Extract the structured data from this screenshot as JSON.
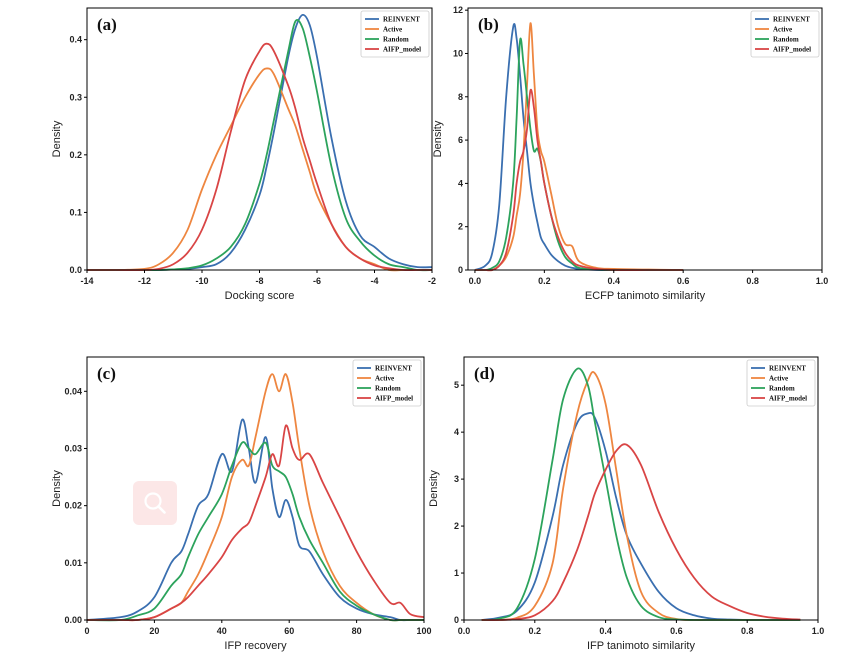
{
  "colors": {
    "REINVENT": "#3a6fb0",
    "Active": "#ee8640",
    "Random": "#2ca35c",
    "AIFP_model": "#d94545"
  },
  "legend_labels": [
    "REINVENT",
    "Active",
    "Random",
    "AIFP_model"
  ],
  "overlay_icon": "search-icon",
  "chart_data": [
    {
      "type": "line",
      "panel_label": "(a)",
      "xlabel": "Docking score",
      "ylabel": "Density",
      "xlim": [
        -14,
        -2
      ],
      "ylim": [
        0,
        0.455
      ],
      "xticks": [
        -14,
        -12,
        -10,
        -8,
        -6,
        -4,
        -2
      ],
      "yticks": [
        0.0,
        0.1,
        0.2,
        0.3,
        0.4
      ],
      "x": [
        -14,
        -13,
        -12,
        -11.5,
        -11,
        -10.5,
        -10,
        -9.5,
        -9,
        -8.5,
        -8,
        -7.75,
        -7.5,
        -7,
        -6.75,
        -6.5,
        -6.25,
        -6,
        -5.5,
        -5,
        -4.5,
        -4,
        -3.5,
        -3,
        -2.5,
        -2
      ],
      "series": [
        {
          "name": "REINVENT",
          "values": [
            0,
            0,
            0,
            0,
            0.001,
            0.002,
            0.005,
            0.01,
            0.03,
            0.07,
            0.13,
            0.18,
            0.24,
            0.37,
            0.42,
            0.443,
            0.425,
            0.37,
            0.23,
            0.12,
            0.06,
            0.04,
            0.02,
            0.01,
            0.005,
            0.005
          ]
        },
        {
          "name": "Active",
          "values": [
            0,
            0,
            0.002,
            0.01,
            0.03,
            0.07,
            0.14,
            0.2,
            0.25,
            0.3,
            0.34,
            0.35,
            0.34,
            0.28,
            0.25,
            0.21,
            0.17,
            0.13,
            0.08,
            0.04,
            0.02,
            0.01,
            0,
            0,
            0,
            0
          ]
        },
        {
          "name": "Random",
          "values": [
            0,
            0,
            0,
            0,
            0.001,
            0.003,
            0.008,
            0.02,
            0.04,
            0.08,
            0.15,
            0.2,
            0.26,
            0.38,
            0.432,
            0.42,
            0.37,
            0.31,
            0.18,
            0.09,
            0.05,
            0.025,
            0.01,
            0.005,
            0,
            0
          ]
        },
        {
          "name": "AIFP_model",
          "values": [
            0,
            0,
            0,
            0.002,
            0.01,
            0.03,
            0.07,
            0.14,
            0.24,
            0.33,
            0.38,
            0.393,
            0.38,
            0.32,
            0.28,
            0.23,
            0.19,
            0.15,
            0.08,
            0.04,
            0.02,
            0.008,
            0.003,
            0,
            0,
            0
          ]
        }
      ]
    },
    {
      "type": "line",
      "panel_label": "(b)",
      "xlabel": "ECFP tanimoto similarity",
      "ylabel": "Density",
      "xlim": [
        -0.02,
        1.0
      ],
      "ylim": [
        0,
        12.1
      ],
      "xticks": [
        0.0,
        0.2,
        0.4,
        0.6,
        0.8,
        1.0
      ],
      "yticks": [
        0,
        2,
        4,
        6,
        8,
        10,
        12
      ],
      "x": [
        0,
        0.03,
        0.05,
        0.07,
        0.09,
        0.11,
        0.12,
        0.13,
        0.14,
        0.15,
        0.16,
        0.17,
        0.18,
        0.19,
        0.2,
        0.22,
        0.24,
        0.26,
        0.28,
        0.3,
        0.35,
        0.4,
        0.5,
        0.6
      ],
      "series": [
        {
          "name": "REINVENT",
          "values": [
            0,
            0.2,
            0.8,
            3,
            8,
            11.2,
            10.7,
            9,
            7,
            5.5,
            4,
            3,
            2.2,
            1.5,
            1.2,
            0.7,
            0.4,
            0.2,
            0.1,
            0.05,
            0,
            0,
            0,
            0
          ]
        },
        {
          "name": "Active",
          "values": [
            0,
            0,
            0,
            0.2,
            0.6,
            1.5,
            2.5,
            3.5,
            5.5,
            8.5,
            11.4,
            9,
            6.5,
            5.5,
            5,
            3.5,
            2,
            1.2,
            1.1,
            0.4,
            0.1,
            0.05,
            0.02,
            0
          ]
        },
        {
          "name": "Random",
          "values": [
            0,
            0,
            0.1,
            0.4,
            1.5,
            4,
            7,
            10.6,
            9.5,
            8,
            6.5,
            5.5,
            5.6,
            5,
            4,
            2.5,
            1.3,
            0.6,
            0.3,
            0.1,
            0.02,
            0,
            0,
            0
          ]
        },
        {
          "name": "AIFP_model",
          "values": [
            0,
            0,
            0,
            0.2,
            0.8,
            2.5,
            4,
            5,
            5.5,
            6.5,
            8.3,
            7.5,
            6,
            5,
            4,
            2.5,
            1.5,
            0.8,
            0.4,
            0.2,
            0.05,
            0,
            0,
            0
          ]
        }
      ]
    },
    {
      "type": "line",
      "panel_label": "(c)",
      "xlabel": "IFP recovery",
      "ylabel": "Density",
      "xlim": [
        0,
        100
      ],
      "ylim": [
        0,
        0.046
      ],
      "xticks": [
        0,
        20,
        40,
        60,
        80,
        100
      ],
      "yticks": [
        0.0,
        0.01,
        0.02,
        0.03,
        0.04
      ],
      "x": [
        0,
        10,
        15,
        20,
        25,
        28,
        30,
        33,
        36,
        40,
        43,
        46,
        48,
        50,
        53,
        55,
        57,
        59,
        61,
        63,
        66,
        70,
        75,
        80,
        85,
        90,
        93,
        96,
        100
      ],
      "series": [
        {
          "name": "REINVENT",
          "values": [
            0,
            0.0005,
            0.0015,
            0.004,
            0.01,
            0.012,
            0.015,
            0.02,
            0.022,
            0.029,
            0.026,
            0.035,
            0.03,
            0.024,
            0.032,
            0.023,
            0.018,
            0.021,
            0.018,
            0.013,
            0.012,
            0.008,
            0.004,
            0.002,
            0.001,
            0.0005,
            0,
            0,
            0
          ]
        },
        {
          "name": "Active",
          "values": [
            0,
            0,
            0,
            0.0005,
            0.002,
            0.003,
            0.005,
            0.008,
            0.012,
            0.018,
            0.025,
            0.028,
            0.027,
            0.032,
            0.04,
            0.043,
            0.04,
            0.043,
            0.038,
            0.03,
            0.02,
            0.012,
            0.006,
            0.003,
            0.001,
            0,
            0,
            0,
            0
          ]
        },
        {
          "name": "Random",
          "values": [
            0,
            0,
            0.0008,
            0.002,
            0.006,
            0.008,
            0.011,
            0.015,
            0.018,
            0.022,
            0.027,
            0.031,
            0.03,
            0.029,
            0.031,
            0.027,
            0.026,
            0.025,
            0.022,
            0.018,
            0.014,
            0.01,
            0.005,
            0.0025,
            0.001,
            0,
            0,
            0,
            0
          ]
        },
        {
          "name": "AIFP_model",
          "values": [
            0,
            0,
            0,
            0.0005,
            0.002,
            0.003,
            0.004,
            0.006,
            0.008,
            0.011,
            0.014,
            0.016,
            0.017,
            0.02,
            0.025,
            0.029,
            0.027,
            0.034,
            0.03,
            0.028,
            0.029,
            0.024,
            0.018,
            0.012,
            0.007,
            0.003,
            0.003,
            0.001,
            0.0005
          ]
        }
      ]
    },
    {
      "type": "line",
      "panel_label": "(d)",
      "xlabel": "IFP tanimoto similarity",
      "ylabel": "Density",
      "xlim": [
        0,
        1.0
      ],
      "ylim": [
        0,
        5.6
      ],
      "xticks": [
        0.0,
        0.2,
        0.4,
        0.6,
        0.8,
        1.0
      ],
      "yticks": [
        0,
        1,
        2,
        3,
        4,
        5
      ],
      "x": [
        0.05,
        0.1,
        0.15,
        0.2,
        0.25,
        0.28,
        0.32,
        0.35,
        0.37,
        0.4,
        0.43,
        0.46,
        0.5,
        0.55,
        0.6,
        0.65,
        0.7,
        0.75,
        0.8,
        0.85,
        0.9,
        0.95
      ],
      "series": [
        {
          "name": "REINVENT",
          "values": [
            0,
            0.05,
            0.2,
            0.8,
            2.2,
            3.3,
            4.2,
            4.4,
            4.3,
            3.6,
            2.6,
            1.8,
            1.2,
            0.6,
            0.25,
            0.1,
            0.03,
            0.01,
            0,
            0,
            0,
            0
          ]
        },
        {
          "name": "Active",
          "values": [
            0,
            0,
            0.05,
            0.3,
            1.2,
            2.8,
            4.4,
            5.1,
            5.25,
            4.6,
            3.2,
            1.8,
            0.6,
            0.15,
            0.02,
            0,
            0,
            0,
            0,
            0,
            0,
            0
          ]
        },
        {
          "name": "Random",
          "values": [
            0,
            0.03,
            0.25,
            1.3,
            3.4,
            4.7,
            5.35,
            5.0,
            4.2,
            3.0,
            1.8,
            0.9,
            0.3,
            0.06,
            0.01,
            0,
            0,
            0,
            0,
            0,
            0,
            0
          ]
        },
        {
          "name": "AIFP_model",
          "values": [
            0,
            0,
            0.02,
            0.1,
            0.4,
            0.8,
            1.5,
            2.2,
            2.7,
            3.2,
            3.6,
            3.73,
            3.3,
            2.3,
            1.5,
            0.9,
            0.5,
            0.3,
            0.15,
            0.07,
            0.03,
            0.01
          ]
        }
      ]
    }
  ]
}
